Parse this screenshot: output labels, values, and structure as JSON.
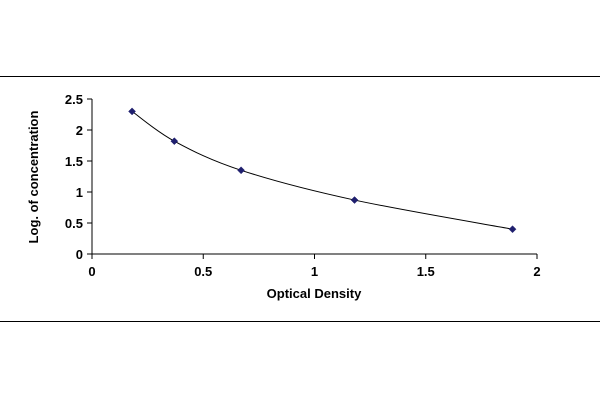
{
  "chart_data": {
    "type": "scatter",
    "title": "",
    "xlabel": "Optical Density",
    "ylabel": "Log. of concentration",
    "xlim": [
      0,
      2
    ],
    "ylim": [
      0,
      2.5
    ],
    "xticks": [
      "0",
      "0.5",
      "1",
      "1.5",
      "2"
    ],
    "yticks": [
      "0",
      "0.5",
      "1",
      "1.5",
      "2",
      "2.5"
    ],
    "grid": false,
    "trendline": "smooth curve through points",
    "series": [
      {
        "x": [
          0.18,
          0.37,
          0.67,
          1.18,
          1.89
        ],
        "y": [
          2.3,
          1.82,
          1.35,
          0.87,
          0.4
        ]
      }
    ],
    "colors": {
      "marker": "#1f1f6e",
      "line": "#000000",
      "axis": "#000000"
    }
  }
}
